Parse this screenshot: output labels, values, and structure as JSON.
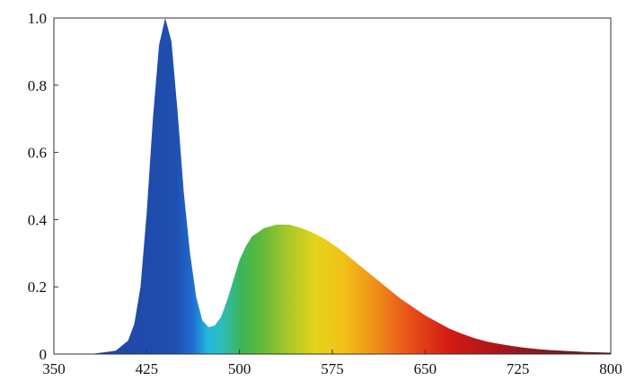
{
  "chart_data": {
    "type": "area",
    "title": "",
    "xlabel": "",
    "ylabel": "",
    "xlim": [
      350,
      800
    ],
    "ylim": [
      0,
      1.0
    ],
    "grid": false,
    "x_ticks": [
      350,
      425,
      500,
      575,
      650,
      725,
      800
    ],
    "x_tick_labels": [
      "350",
      "425",
      "500",
      "575",
      "650",
      "725",
      "800"
    ],
    "y_ticks": [
      0,
      0.2,
      0.4,
      0.6,
      0.8,
      1.0
    ],
    "y_tick_labels": [
      "0",
      "0.2",
      "0.4",
      "0.6",
      "0.8",
      "1.0"
    ],
    "fill": "visible-spectrum color gradient",
    "series": [
      {
        "x": [
          380,
          390,
          400,
          410,
          415,
          420,
          425,
          430,
          435,
          440,
          445,
          450,
          455,
          460,
          465,
          470,
          475,
          480,
          485,
          490,
          495,
          500,
          505,
          510,
          520,
          530,
          540,
          545,
          550,
          560,
          570,
          580,
          590,
          600,
          610,
          620,
          630,
          640,
          650,
          660,
          670,
          680,
          690,
          700,
          710,
          720,
          730,
          740,
          750,
          760,
          770,
          780,
          790,
          800
        ],
        "y": [
          0.0,
          0.005,
          0.01,
          0.04,
          0.09,
          0.2,
          0.42,
          0.7,
          0.92,
          1.0,
          0.93,
          0.72,
          0.48,
          0.3,
          0.17,
          0.1,
          0.08,
          0.085,
          0.11,
          0.16,
          0.22,
          0.28,
          0.32,
          0.35,
          0.375,
          0.385,
          0.385,
          0.38,
          0.375,
          0.36,
          0.34,
          0.315,
          0.285,
          0.255,
          0.225,
          0.195,
          0.165,
          0.14,
          0.115,
          0.095,
          0.075,
          0.06,
          0.047,
          0.037,
          0.03,
          0.024,
          0.019,
          0.015,
          0.012,
          0.01,
          0.008,
          0.006,
          0.005,
          0.004
        ]
      }
    ]
  }
}
